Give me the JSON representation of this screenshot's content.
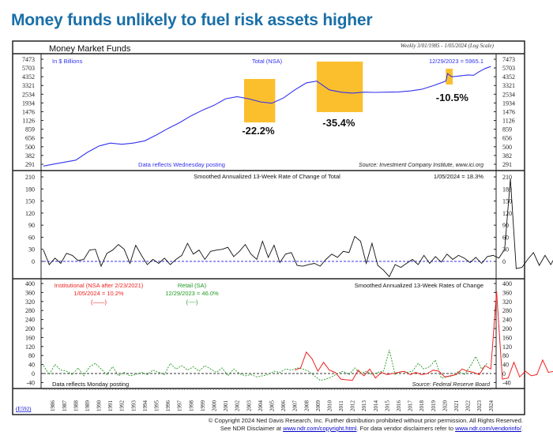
{
  "page_title": "Money funds unlikely to fuel risk assets higher",
  "chart_header": "Money Market Funds",
  "date_range": "Weekly 3/01/1985 - 1/05/2024 (Log Scale)",
  "chart_id": "(E592)",
  "footer": {
    "line1": "© Copyright 2024 Ned Davis Research, Inc.  Further distribution prohibited without prior permission.  All Rights Reserved.",
    "line2_a": "See NDR Disclaimer at ",
    "link1": "www.ndr.com/copyright.html",
    "line2_b": ". For data vendor disclaimers refer to ",
    "link2": "www.ndr.com/vendorinfo/",
    "line2_c": "."
  },
  "colors": {
    "title": "#1a6fa8",
    "total": "#3333ee",
    "institutional": "#ee2222",
    "retail": "#229922",
    "highlight": "#fbbf2e"
  },
  "chart_data": [
    {
      "type": "line",
      "title": "Total (NSA)",
      "units": "In $ Billions",
      "scale": "log",
      "last_value_label": "12/29/2023 = 5965.1",
      "note": "Data reflects Wednesday posting",
      "source": "Source: Investment Company Institute, www.ici.org",
      "yticks": [
        291,
        382,
        500,
        656,
        859,
        1126,
        1476,
        1934,
        2534,
        3321,
        4352,
        5703,
        7473
      ],
      "ylim": [
        270,
        7600
      ],
      "x": [
        1985.2,
        1986,
        1987,
        1988,
        1989,
        1990,
        1991,
        1992,
        1993,
        1994,
        1995,
        1996,
        1997,
        1998,
        1999,
        2000,
        2001,
        2002,
        2003,
        2004,
        2005,
        2006,
        2007,
        2008,
        2008.9,
        2010,
        2011,
        2012,
        2013,
        2014,
        2015,
        2016,
        2017,
        2018,
        2019,
        2020.1,
        2020.25,
        2020.6,
        2021,
        2022,
        2022.5,
        2023,
        2023.5,
        2024
      ],
      "values": [
        275,
        290,
        310,
        330,
        420,
        510,
        560,
        540,
        560,
        600,
        720,
        880,
        1050,
        1300,
        1550,
        1800,
        2200,
        2350,
        2200,
        2000,
        1920,
        2250,
        2900,
        3600,
        3800,
        2900,
        2700,
        2620,
        2700,
        2680,
        2700,
        2720,
        2800,
        2950,
        3300,
        3800,
        4800,
        4350,
        4400,
        4600,
        4550,
        5100,
        5600,
        5965
      ],
      "annotations": [
        {
          "label": "-22.2%",
          "from": 2002.6,
          "to": 2005.3
        },
        {
          "label": "-35.4%",
          "from": 2008.9,
          "to": 2012.9
        },
        {
          "label": "-10.5%",
          "from": 2020.1,
          "to": 2020.7
        }
      ]
    },
    {
      "type": "line",
      "title": "Smoothed Annualized 13-Week Rate of Change of Total",
      "last_value_label": "1/05/2024 = 18.3%",
      "yticks": [
        0,
        30,
        60,
        90,
        120,
        150,
        180,
        210
      ],
      "ylim": [
        -40,
        220
      ],
      "x_start": 1985.2,
      "x_step": 0.5,
      "values": [
        28,
        -8,
        8,
        -5,
        20,
        15,
        2,
        5,
        28,
        30,
        -12,
        20,
        28,
        42,
        30,
        -5,
        40,
        15,
        -8,
        5,
        -5,
        8,
        -8,
        5,
        15,
        45,
        18,
        28,
        5,
        25,
        28,
        30,
        35,
        12,
        25,
        42,
        18,
        5,
        50,
        10,
        40,
        -3,
        18,
        22,
        -10,
        -12,
        -8,
        -5,
        -12,
        5,
        18,
        10,
        25,
        22,
        62,
        50,
        -5,
        45,
        -10,
        -22,
        -38,
        -8,
        -15,
        -5,
        5,
        -8,
        15,
        -5,
        12,
        -2,
        18,
        5,
        15,
        8,
        -3,
        10,
        -5,
        12,
        15,
        8,
        30,
        205,
        -18,
        -15,
        5,
        22,
        -10,
        15,
        -8,
        18,
        52,
        18
      ],
      "zero_line": true
    },
    {
      "type": "line",
      "title": "Smoothed Annualized 13-Week Rates of Change",
      "note": "Data reflects Monday posting",
      "source": "Source: Federal Reserve Board",
      "yticks": [
        -40,
        0,
        40,
        80,
        120,
        160,
        200,
        240,
        280,
        320,
        360,
        400
      ],
      "ylim": [
        -50,
        410
      ],
      "x_labels": [
        "1986",
        "1987",
        "1988",
        "1989",
        "1990",
        "1991",
        "1992",
        "1993",
        "1994",
        "1995",
        "1996",
        "1997",
        "1998",
        "1999",
        "2000",
        "2001",
        "2002",
        "2003",
        "2004",
        "2005",
        "2006",
        "2007",
        "2008",
        "2009",
        "2010",
        "2011",
        "2012",
        "2013",
        "2014",
        "2015",
        "2016",
        "2017",
        "2018",
        "2019",
        "2020",
        "2021",
        "2022",
        "2023",
        "2024"
      ],
      "series": [
        {
          "name": "Institutional (NSA after 2/23/2021)",
          "last_value_label": "1/05/2024 = 10.2%",
          "legend_marker": "(——)",
          "style": "solid",
          "x_start": 2007.0,
          "x_step": 0.5,
          "values": [
            15,
            25,
            95,
            65,
            10,
            50,
            15,
            5,
            -25,
            -28,
            -30,
            15,
            -10,
            20,
            -20,
            5,
            -5,
            0,
            5,
            10,
            -5,
            5,
            -5,
            0,
            15,
            10,
            -15,
            -10,
            -5,
            20,
            10,
            5,
            -5,
            35,
            20,
            365,
            -25,
            -20,
            50,
            -15,
            10,
            -10,
            -5,
            60,
            5,
            10
          ]
        },
        {
          "name": "Retail (SA)",
          "last_value_label": "12/29/2023 = 46.0%",
          "legend_marker": "(----)",
          "style": "dashed",
          "x_start": 1985.2,
          "x_step": 0.5,
          "values": [
            35,
            -5,
            40,
            15,
            10,
            -5,
            25,
            -10,
            30,
            45,
            20,
            -5,
            30,
            -10,
            5,
            -10,
            -5,
            5,
            -5,
            15,
            5,
            -5,
            45,
            20,
            35,
            15,
            30,
            10,
            35,
            20,
            5,
            25,
            -10,
            20,
            0,
            -10,
            -5,
            -15,
            -10,
            -5,
            10,
            5,
            20,
            15,
            25,
            20,
            10,
            -10,
            -30,
            -25,
            -15,
            0,
            10,
            -5,
            25,
            0,
            10,
            -5,
            5,
            10,
            105,
            -5,
            10,
            5,
            10,
            45,
            20,
            30,
            60,
            -20,
            -15,
            -10,
            10,
            -5,
            30,
            75,
            20,
            46
          ]
        }
      ]
    }
  ]
}
